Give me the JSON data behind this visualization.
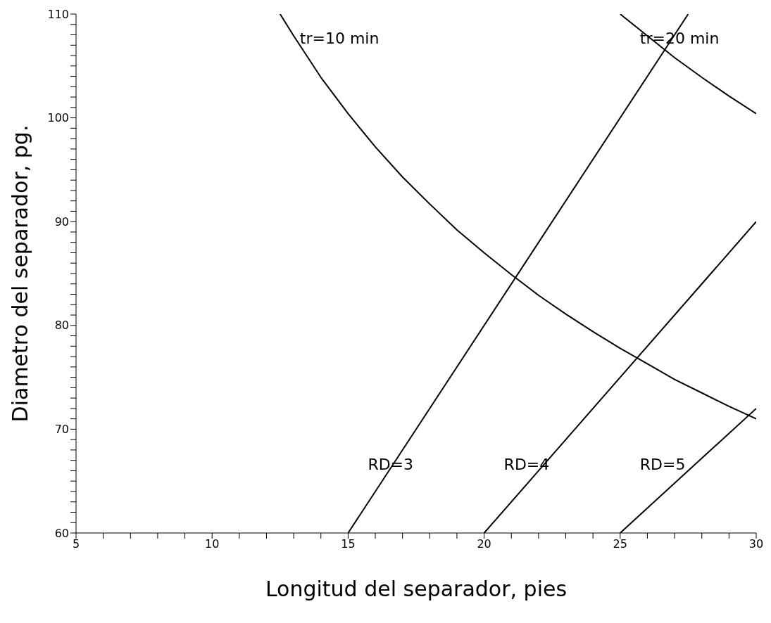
{
  "chart_data": {
    "type": "line",
    "xlabel": "Longitud del separador, pies",
    "ylabel": "Diametro del separador, pg.",
    "xlim": [
      5,
      30
    ],
    "ylim": [
      60,
      110
    ],
    "xticks": [
      5,
      {
        "value": 6,
        "label": null
      },
      {
        "value": 7,
        "label": null
      },
      {
        "value": 8,
        "label": null
      },
      {
        "value": 9,
        "label": null
      },
      10,
      {
        "value": 11,
        "label": null
      },
      {
        "value": 12,
        "label": null
      },
      {
        "value": 13,
        "label": null
      },
      {
        "value": 14,
        "label": null
      },
      15,
      {
        "value": 16,
        "label": null
      },
      {
        "value": 17,
        "label": null
      },
      {
        "value": 18,
        "label": null
      },
      {
        "value": 19,
        "label": null
      },
      20,
      {
        "value": 21,
        "label": null
      },
      {
        "value": 22,
        "label": null
      },
      {
        "value": 23,
        "label": null
      },
      {
        "value": 24,
        "label": null
      },
      25,
      {
        "value": 26,
        "label": null
      },
      {
        "value": 27,
        "label": null
      },
      {
        "value": 28,
        "label": null
      },
      {
        "value": 29,
        "label": null
      },
      30
    ],
    "yticks": [
      60,
      {
        "value": 61,
        "label": null
      },
      {
        "value": 62,
        "label": null
      },
      {
        "value": 63,
        "label": null
      },
      {
        "value": 64,
        "label": null
      },
      {
        "value": 65,
        "label": null
      },
      {
        "value": 66,
        "label": null
      },
      {
        "value": 67,
        "label": null
      },
      {
        "value": 68,
        "label": null
      },
      {
        "value": 69,
        "label": null
      },
      70,
      {
        "value": 71,
        "label": null
      },
      {
        "value": 72,
        "label": null
      },
      {
        "value": 73,
        "label": null
      },
      {
        "value": 74,
        "label": null
      },
      {
        "value": 75,
        "label": null
      },
      {
        "value": 76,
        "label": null
      },
      {
        "value": 77,
        "label": null
      },
      {
        "value": 78,
        "label": null
      },
      {
        "value": 79,
        "label": null
      },
      80,
      {
        "value": 81,
        "label": null
      },
      {
        "value": 82,
        "label": null
      },
      {
        "value": 83,
        "label": null
      },
      {
        "value": 84,
        "label": null
      },
      {
        "value": 85,
        "label": null
      },
      {
        "value": 86,
        "label": null
      },
      {
        "value": 87,
        "label": null
      },
      {
        "value": 88,
        "label": null
      },
      {
        "value": 89,
        "label": null
      },
      90,
      {
        "value": 91,
        "label": null
      },
      {
        "value": 92,
        "label": null
      },
      {
        "value": 93,
        "label": null
      },
      {
        "value": 94,
        "label": null
      },
      {
        "value": 95,
        "label": null
      },
      {
        "value": 96,
        "label": null
      },
      {
        "value": 97,
        "label": null
      },
      {
        "value": 98,
        "label": null
      },
      {
        "value": 99,
        "label": null
      },
      100,
      {
        "value": 101,
        "label": null
      },
      {
        "value": 102,
        "label": null
      },
      {
        "value": 103,
        "label": null
      },
      {
        "value": 104,
        "label": null
      },
      {
        "value": 105,
        "label": null
      },
      {
        "value": 106,
        "label": null
      },
      {
        "value": 107,
        "label": null
      },
      {
        "value": 108,
        "label": null
      },
      {
        "value": 109,
        "label": null
      },
      110
    ],
    "grid": false,
    "legend": false,
    "marker": "none",
    "line_style": "solid",
    "series": [
      {
        "name": "tr=10 min",
        "color": "#000000",
        "x": [
          12.5,
          13,
          14,
          15,
          16,
          17,
          18,
          19,
          20,
          21,
          22,
          23,
          24,
          25,
          26,
          27,
          28,
          29,
          30
        ],
        "values": [
          110,
          107.9,
          103.9,
          100.4,
          97.2,
          94.3,
          91.7,
          89.2,
          87,
          84.9,
          82.9,
          81.1,
          79.4,
          77.8,
          76.3,
          74.8,
          73.5,
          72.2,
          71
        ]
      },
      {
        "name": "tr=20 min",
        "color": "#000000",
        "x": [
          25,
          26,
          27,
          28,
          29,
          30
        ],
        "values": [
          110,
          107.9,
          105.8,
          103.9,
          102.1,
          100.4
        ]
      },
      {
        "name": "RD=3",
        "color": "#000000",
        "x": [
          15,
          27.5
        ],
        "values": [
          60,
          110
        ]
      },
      {
        "name": "RD=4",
        "color": "#000000",
        "x": [
          20,
          30
        ],
        "values": [
          60,
          90
        ]
      },
      {
        "name": "RD=5",
        "color": "#000000",
        "x": [
          25,
          30
        ],
        "values": [
          60,
          72
        ]
      }
    ]
  }
}
